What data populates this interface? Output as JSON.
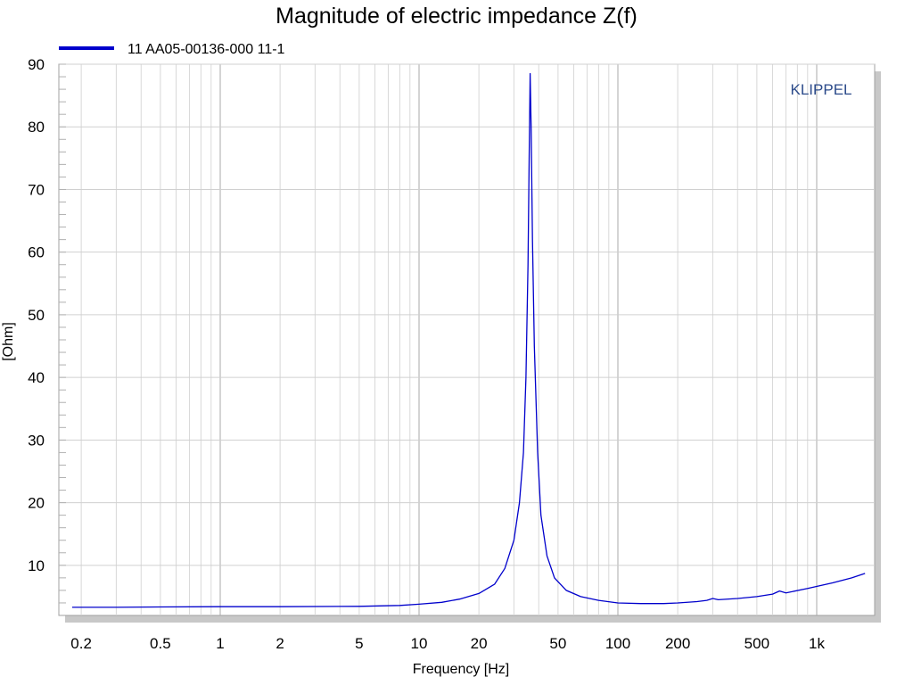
{
  "chart_data": {
    "type": "line",
    "title": "Magnitude of electric impedance Z(f)",
    "xlabel": "Frequency [Hz]",
    "ylabel": "[Ohm]",
    "xscale": "log",
    "xlim": [
      0.15,
      2000
    ],
    "ylim": [
      2,
      90
    ],
    "grid": true,
    "legend_position": "top-left",
    "watermark": "KLIPPEL",
    "x_tick_labels": [
      {
        "value": 0.2,
        "label": "0.2"
      },
      {
        "value": 0.5,
        "label": "0.5"
      },
      {
        "value": 1,
        "label": "1"
      },
      {
        "value": 2,
        "label": "2"
      },
      {
        "value": 5,
        "label": "5"
      },
      {
        "value": 10,
        "label": "10"
      },
      {
        "value": 20,
        "label": "20"
      },
      {
        "value": 50,
        "label": "50"
      },
      {
        "value": 100,
        "label": "100"
      },
      {
        "value": 200,
        "label": "200"
      },
      {
        "value": 500,
        "label": "500"
      },
      {
        "value": 1000,
        "label": "1k"
      }
    ],
    "y_tick_labels": [
      {
        "value": 10,
        "label": "10"
      },
      {
        "value": 20,
        "label": "20"
      },
      {
        "value": 30,
        "label": "30"
      },
      {
        "value": 40,
        "label": "40"
      },
      {
        "value": 50,
        "label": "50"
      },
      {
        "value": 60,
        "label": "60"
      },
      {
        "value": 70,
        "label": "70"
      },
      {
        "value": 80,
        "label": "80"
      },
      {
        "value": 90,
        "label": "90"
      }
    ],
    "series": [
      {
        "name": "11  AA05-00136-000  11-1",
        "color": "#0000cc",
        "points": [
          [
            0.18,
            3.3
          ],
          [
            0.3,
            3.3
          ],
          [
            0.5,
            3.35
          ],
          [
            1,
            3.4
          ],
          [
            2,
            3.4
          ],
          [
            5,
            3.45
          ],
          [
            8,
            3.6
          ],
          [
            10,
            3.8
          ],
          [
            13,
            4.1
          ],
          [
            16,
            4.6
          ],
          [
            20,
            5.5
          ],
          [
            24,
            7.0
          ],
          [
            27,
            9.5
          ],
          [
            30,
            14
          ],
          [
            32,
            20
          ],
          [
            33.5,
            28
          ],
          [
            34.5,
            40
          ],
          [
            35.3,
            58
          ],
          [
            35.8,
            75
          ],
          [
            36.2,
            88.5
          ],
          [
            36.6,
            80
          ],
          [
            37.2,
            62
          ],
          [
            38,
            45
          ],
          [
            39.5,
            28
          ],
          [
            41,
            18
          ],
          [
            44,
            11.5
          ],
          [
            48,
            8.0
          ],
          [
            55,
            6.0
          ],
          [
            65,
            5.0
          ],
          [
            80,
            4.4
          ],
          [
            100,
            4.0
          ],
          [
            130,
            3.9
          ],
          [
            170,
            3.9
          ],
          [
            200,
            4.0
          ],
          [
            250,
            4.2
          ],
          [
            280,
            4.4
          ],
          [
            300,
            4.7
          ],
          [
            320,
            4.5
          ],
          [
            400,
            4.7
          ],
          [
            500,
            5.0
          ],
          [
            600,
            5.4
          ],
          [
            650,
            5.9
          ],
          [
            700,
            5.6
          ],
          [
            900,
            6.3
          ],
          [
            1200,
            7.2
          ],
          [
            1500,
            8.0
          ],
          [
            1750,
            8.7
          ]
        ]
      }
    ]
  }
}
